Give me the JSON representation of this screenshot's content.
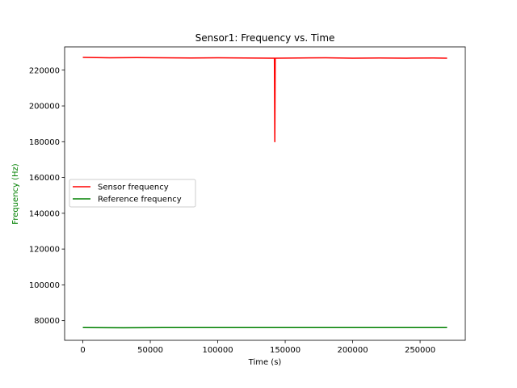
{
  "chart_data": {
    "type": "line",
    "title": "Sensor1: Frequency vs. Time",
    "xlabel": "Time (s)",
    "ylabel": "Frequency (Hz)",
    "ylabel_color": "#008000",
    "xlim": [
      -13500,
      283500
    ],
    "ylim": [
      69000,
      233000
    ],
    "xticks": [
      0,
      50000,
      100000,
      150000,
      200000,
      250000
    ],
    "yticks": [
      80000,
      100000,
      120000,
      140000,
      160000,
      180000,
      200000,
      220000
    ],
    "grid": false,
    "legend_position": "center-left",
    "series": [
      {
        "name": "Sensor frequency",
        "color": "#ff0000",
        "x": [
          0,
          20000,
          40000,
          60000,
          80000,
          100000,
          120000,
          140000,
          142000,
          142300,
          142600,
          143000,
          160000,
          180000,
          200000,
          220000,
          240000,
          260000,
          270000
        ],
        "y": [
          227100,
          226900,
          227000,
          226900,
          226800,
          226900,
          226800,
          226700,
          226700,
          180000,
          226700,
          226700,
          226800,
          226900,
          226700,
          226800,
          226700,
          226800,
          226700
        ]
      },
      {
        "name": "Reference frequency",
        "color": "#008000",
        "x": [
          0,
          30000,
          60000,
          90000,
          120000,
          150000,
          180000,
          210000,
          240000,
          270000
        ],
        "y": [
          76100,
          76000,
          76100,
          76100,
          76100,
          76100,
          76100,
          76100,
          76100,
          76100
        ]
      }
    ]
  }
}
